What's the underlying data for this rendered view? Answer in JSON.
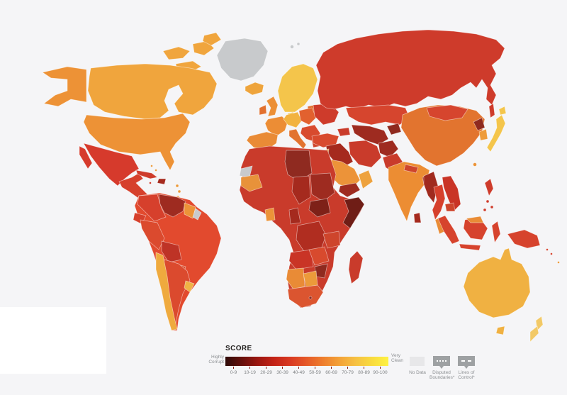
{
  "page": {
    "background": "#F5F5F7"
  },
  "legend": {
    "title": "SCORE",
    "left_label_line1": "Highly",
    "left_label_line2": "Corrupt",
    "right_label_line1": "Very",
    "right_label_line2": "Clean",
    "buckets": [
      "0-9",
      "10-19",
      "20-29",
      "30-39",
      "40-49",
      "50-59",
      "60-69",
      "70-79",
      "80-89",
      "90-100"
    ],
    "gradient_stops": [
      "#2E0B09",
      "#660F0B",
      "#9C1710",
      "#C42317",
      "#D93A22",
      "#E65A28",
      "#EE7E2D",
      "#F3A238",
      "#F6C143",
      "#F9DB3E",
      "#FEF243"
    ],
    "no_data_label": "No Data",
    "no_data_color": "#E7E7E9",
    "disputed_label_line1": "Disputed",
    "disputed_label_line2": "Boundaries*",
    "lines_label_line1": "Lines of",
    "lines_label_line2": "Control*",
    "chip_color": "#9EA1A3"
  },
  "map": {
    "region_colors": {
      "greenland": "#C8CACC",
      "svalbard": "#C8CACC",
      "arctic-islands": "#F0A53D",
      "canada": "#F0A53D",
      "alaska": "#ED9236",
      "usa": "#ED9236",
      "mexico": "#D63A2C",
      "central-america": "#D6402C",
      "cuba": "#CE3B2B",
      "hispaniola": "#A52A1E",
      "bahamas": "#EC9A3A",
      "antilles": "#EC9A3A",
      "jamaica": "#CE3B2B",
      "south-america": "#E24A2E",
      "colombia": "#D6402C",
      "venezuela": "#9E2B20",
      "guianas": "#EC9338",
      "french-guiana": "#C8CACC",
      "peru": "#DB4A2E",
      "ecuador": "#D6402C",
      "bolivia": "#BE3326",
      "paraguay": "#D6502E",
      "chile": "#EFAA3E",
      "argentina": "#DB4A2E",
      "uruguay": "#EFB245",
      "iceland": "#EEA43C",
      "uk": "#EC8F36",
      "ireland": "#E2702F",
      "iberia": "#E98B36",
      "france": "#EC8D35",
      "scandinavia": "#F4C54B",
      "denmark": "#F2C44C",
      "baltics": "#E2702F",
      "germany": "#F2B340",
      "poland": "#E2612F",
      "ukraine": "#CE3B2B",
      "balkans": "#D84A2E",
      "italy": "#E2732F",
      "greece": "#CE452C",
      "russia": "#CE3B2B",
      "sakhalin": "#CE3B2B",
      "kazakhstan": "#D6452E",
      "uzbek-turkmen": "#9E2B20",
      "kyrgyz-tajik": "#8F2A1F",
      "caucasus": "#C93B2B",
      "turkey": "#D84A2E",
      "syria-iraq": "#A52A1E",
      "iran": "#C93B2B",
      "afghanistan": "#9E2B20",
      "pakistan": "#C93B2B",
      "jordan-israel": "#EC9A3A",
      "saudi": "#EC9339",
      "yemen": "#9E2B20",
      "oman": "#EEA23E",
      "africa": "#C93B2B",
      "west-sahara": "#C8CACC",
      "mauritania-senegal": "#E8923A",
      "libya": "#8F2A20",
      "chad": "#A52A1E",
      "sudan": "#9E2B20",
      "south-sudan": "#7E2118",
      "somalia": "#6F1D16",
      "ghana": "#EC9338",
      "cameroon": "#A52A1E",
      "drc": "#B02D20",
      "tanzania": "#CE452C",
      "angola": "#C93426",
      "zambia": "#D84A2E",
      "zimbabwe": "#8F2A1F",
      "namibia": "#E98B36",
      "botswana": "#EC9A3A",
      "south-africa": "#DB5530",
      "lesotho": "#8F2A1F",
      "madagascar": "#C93B2B",
      "india": "#EC8D33",
      "nepal": "#CE452C",
      "bangladesh": "#A52A1E",
      "sri-lanka": "#A52A1E",
      "china": "#E2742F",
      "mongolia": "#D6452E",
      "north-korea": "#8F2A1F",
      "south-korea": "#EE9B3A",
      "japan": "#F4C54B",
      "taiwan": "#EC9338",
      "myanmar": "#A02A1E",
      "thailand": "#D6402C",
      "vietnam-laos": "#C93426",
      "cambodia": "#CE452C",
      "malay-peninsula": "#E98C36",
      "malaysia-borneo": "#E98C36",
      "philippines": "#CE3B2B",
      "indonesia": "#D6432D",
      "new-guinea": "#D6432D",
      "solomons": "#D6432D",
      "fiji": "#EC9A3A",
      "australia": "#F0B142",
      "tasmania": "#F0B142",
      "new-zealand": "#F2C967"
    }
  }
}
